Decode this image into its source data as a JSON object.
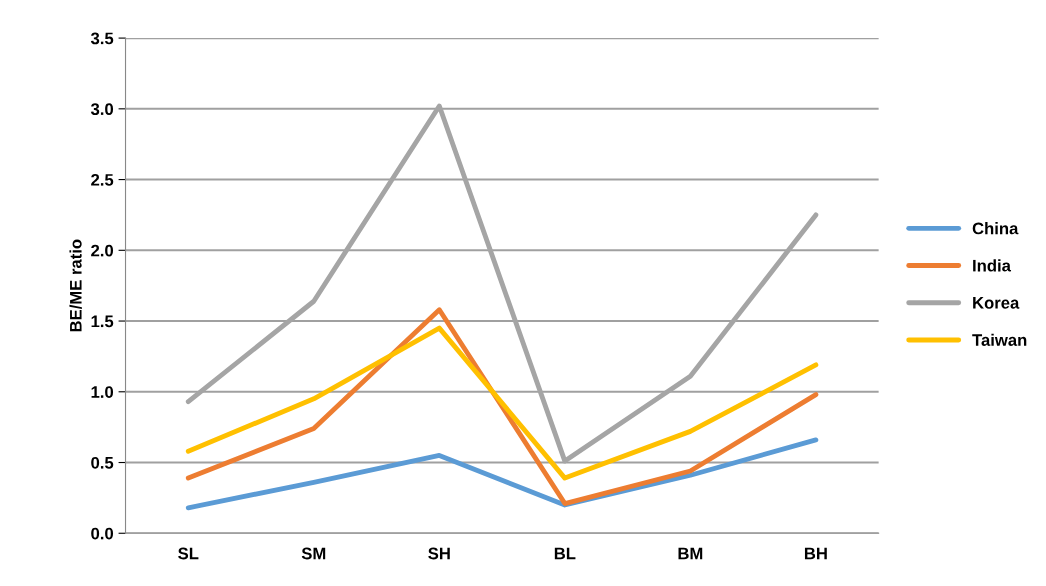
{
  "chart_data": {
    "type": "line",
    "ylabel": "BE/ME ratio",
    "categories": [
      "SL",
      "SM",
      "SH",
      "BL",
      "BM",
      "BH"
    ],
    "series": [
      {
        "name": "China",
        "color": "#5b9bd5",
        "values": [
          0.18,
          0.36,
          0.55,
          0.2,
          0.41,
          0.66
        ]
      },
      {
        "name": "India",
        "color": "#ed7d31",
        "values": [
          0.39,
          0.74,
          1.58,
          0.21,
          0.44,
          0.98
        ]
      },
      {
        "name": "Korea",
        "color": "#a5a5a5",
        "values": [
          0.93,
          1.64,
          3.02,
          0.51,
          1.11,
          2.25
        ]
      },
      {
        "name": "Taiwan",
        "color": "#ffc000",
        "values": [
          0.58,
          0.95,
          1.45,
          0.39,
          0.72,
          1.19
        ]
      }
    ],
    "ylim": [
      0,
      3.5
    ],
    "yticks": [
      {
        "value": 0,
        "label": "0.0"
      },
      {
        "value": 0.5,
        "label": "0.5"
      },
      {
        "value": 1,
        "label": "1.0"
      },
      {
        "value": 1.5,
        "label": "1.5"
      },
      {
        "value": 2,
        "label": "2.0"
      },
      {
        "value": 2.5,
        "label": "2.5"
      },
      {
        "value": 3,
        "label": "3.0"
      },
      {
        "value": 3.5,
        "label": "3.5"
      }
    ],
    "grid": "y",
    "legend": "right",
    "marker": "none",
    "line_style": "solid"
  }
}
